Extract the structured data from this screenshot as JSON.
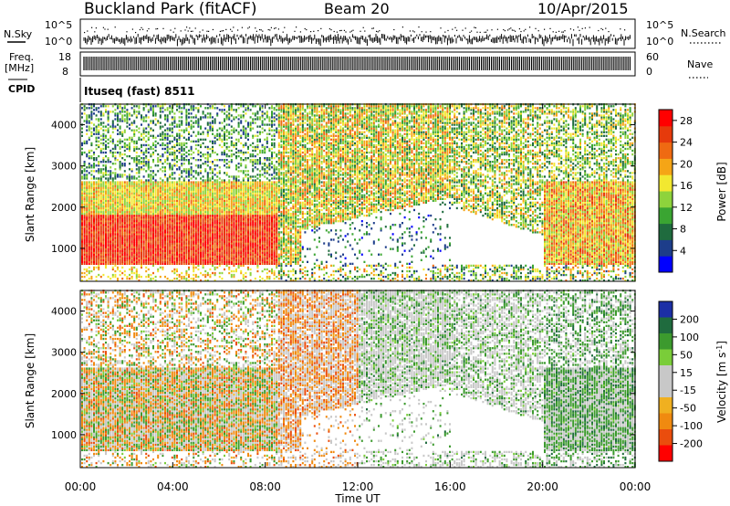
{
  "header": {
    "site": "Buckland Park (fitACF)",
    "beam": "Beam 20",
    "date": "10/Apr/2015"
  },
  "param_panels": {
    "nsky_label": "N.Sky",
    "nsky_ticks": [
      "10^5",
      "10^0"
    ],
    "nsearch_label": "N.Search",
    "nsearch_ticks": [
      "10^5",
      "10^0"
    ],
    "freq_label_1": "Freq.",
    "freq_label_2": "[MHz]",
    "freq_ticks": [
      "18",
      "8"
    ],
    "nave_label": "Nave",
    "nave_ticks": [
      "60",
      "0"
    ],
    "cpid_label": "CPID",
    "cpid_value": "Ituseq (fast) 8511"
  },
  "colors": {
    "power_scale": [
      "#0000ff",
      "#1d3d8a",
      "#1f6b3e",
      "#3aa532",
      "#8ed33c",
      "#f2e830",
      "#f5a516",
      "#ef6a12",
      "#e63a0c",
      "#ff0000"
    ],
    "velocity_scale": [
      "#1c2fa6",
      "#1f6b3e",
      "#3c9a2e",
      "#7acd39",
      "#c8c8c8",
      "#c8c8c8",
      "#f0b020",
      "#f08a10",
      "#ea4d0d",
      "#ff0000"
    ]
  },
  "chart_data": [
    {
      "type": "heatmap",
      "name": "power",
      "ylabel": "Slant Range [km]",
      "yticks": [
        "1000",
        "2000",
        "3000",
        "4000"
      ],
      "ylim": [
        200,
        4500
      ],
      "colorbar_label": "Power [dB]",
      "colorbar_ticks": [
        "4",
        "8",
        "12",
        "16",
        "20",
        "24",
        "28"
      ],
      "colorbar_range": [
        0,
        30
      ]
    },
    {
      "type": "heatmap",
      "name": "velocity",
      "ylabel": "Slant Range [km]",
      "yticks": [
        "1000",
        "2000",
        "3000",
        "4000"
      ],
      "ylim": [
        200,
        4500
      ],
      "colorbar_label": "Velocity [m s",
      "colorbar_label_sup": "-1",
      "colorbar_label_end": "]",
      "colorbar_ticks": [
        "200",
        "100",
        "50",
        "15",
        "-15",
        "-50",
        "-100",
        "-200"
      ],
      "xlabel": "Time UT",
      "xticks": [
        "00:00",
        "04:00",
        "08:00",
        "12:00",
        "16:00",
        "20:00",
        "00:00"
      ]
    }
  ]
}
